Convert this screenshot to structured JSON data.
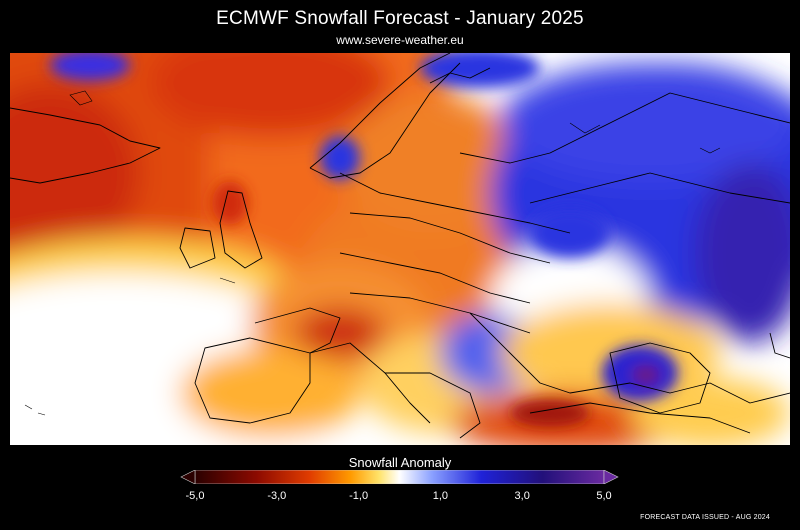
{
  "title": "ECMWF Snowfall Forecast  -  January 2025",
  "subtitle": "www.severe-weather.eu",
  "legend": {
    "title": "Snowfall Anomaly",
    "ticks": [
      "-5,0",
      "-3,0",
      "-1,0",
      "1,0",
      "3,0",
      "5,0"
    ],
    "range": [
      -5,
      5
    ],
    "colors": {
      "min": "#2a0000",
      "dry_dark": "#8c0a00",
      "dry": "#e03c00",
      "dry_light": "#ff9a00",
      "slight_dry": "#ffe36a",
      "neutral": "#ffffff",
      "slight_wet": "#8aa0ff",
      "wet": "#1f22d8",
      "wet_dark": "#22107a",
      "max": "#6a2aa0"
    }
  },
  "footer": {
    "issued": "FORECAST DATA ISSUED - AUG 2024"
  }
}
